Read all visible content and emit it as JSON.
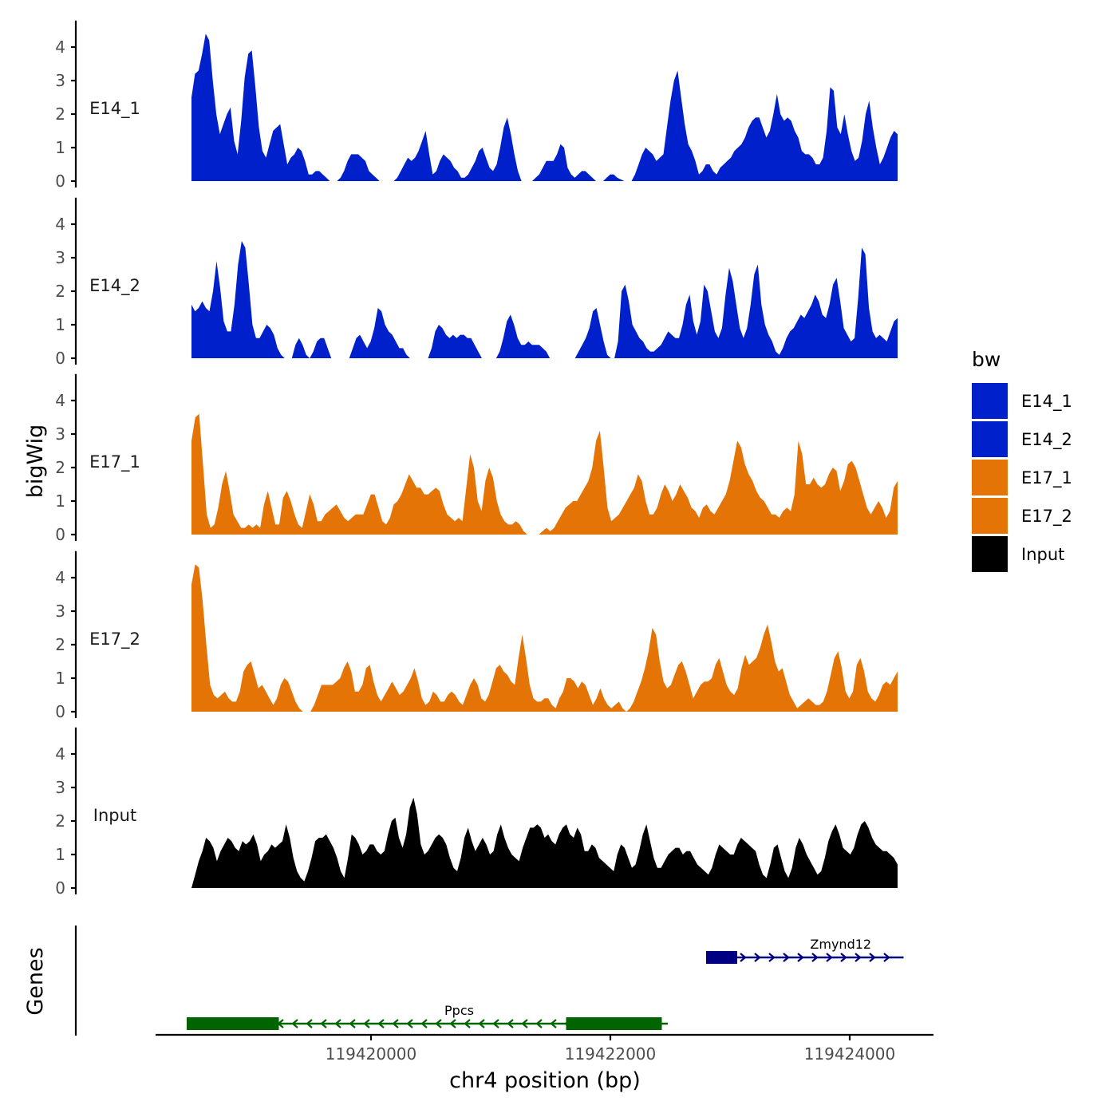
{
  "chart_data": {
    "type": "area",
    "title": "",
    "ylabel": "bigWig",
    "xlabel": "chr4 position (bp)",
    "genes_label": "Genes",
    "ylim": [
      0,
      4.6
    ],
    "y_ticks": [
      "0",
      "1",
      "2",
      "3",
      "4"
    ],
    "xlim": [
      119418200,
      119424700
    ],
    "x_ticks": [
      {
        "value": 119420000,
        "label": "119420000"
      },
      {
        "value": 119422000,
        "label": "119422000"
      },
      {
        "value": 119424000,
        "label": "119424000"
      }
    ],
    "legend": {
      "title": "bw",
      "items": [
        {
          "name": "E14_1",
          "color": "#0020CC"
        },
        {
          "name": "E14_2",
          "color": "#0020CC"
        },
        {
          "name": "E17_1",
          "color": "#E57407"
        },
        {
          "name": "E17_2",
          "color": "#E57407"
        },
        {
          "name": "Input",
          "color": "#000000"
        }
      ]
    },
    "track_x": {
      "start": 119418500,
      "end": 119424400
    },
    "series": [
      {
        "name": "E14_1",
        "color": "#0020CC",
        "values": [
          2.5,
          3.2,
          3.3,
          3.8,
          4.4,
          4.2,
          3.0,
          2.0,
          1.4,
          1.7,
          2.0,
          2.2,
          1.2,
          0.8,
          1.8,
          3.1,
          3.8,
          3.9,
          2.8,
          1.6,
          0.9,
          0.7,
          1.1,
          1.5,
          1.6,
          1.7,
          1.1,
          0.5,
          0.7,
          0.8,
          1.0,
          0.9,
          0.6,
          0.2,
          0.2,
          0.3,
          0.3,
          0.2,
          0.1,
          0,
          0,
          0,
          0.1,
          0.3,
          0.6,
          0.8,
          0.8,
          0.8,
          0.7,
          0.6,
          0.3,
          0.2,
          0.1,
          0,
          0,
          0,
          0,
          0,
          0.1,
          0.3,
          0.5,
          0.7,
          0.6,
          0.7,
          0.9,
          1.2,
          1.5,
          0.8,
          0.2,
          0.3,
          0.6,
          0.8,
          0.7,
          0.6,
          0.4,
          0.3,
          0.1,
          0.1,
          0.2,
          0.4,
          0.6,
          0.9,
          1.0,
          0.7,
          0.4,
          0.3,
          0.5,
          1.0,
          1.6,
          1.9,
          1.4,
          0.8,
          0.3,
          0,
          0,
          0,
          0,
          0.1,
          0.2,
          0.4,
          0.6,
          0.6,
          0.6,
          0.8,
          1.1,
          1.0,
          0.4,
          0.2,
          0.1,
          0.2,
          0.3,
          0.3,
          0.2,
          0.1,
          0,
          0,
          0,
          0.1,
          0.2,
          0.2,
          0.1,
          0.05,
          0,
          0,
          0,
          0.2,
          0.5,
          0.8,
          1.0,
          0.9,
          0.8,
          0.6,
          0.7,
          0.8,
          1.6,
          2.4,
          3.0,
          3.3,
          2.5,
          1.7,
          1.1,
          0.9,
          0.6,
          0.2,
          0.3,
          0.5,
          0.5,
          0.3,
          0.2,
          0.4,
          0.5,
          0.6,
          0.7,
          0.9,
          1.0,
          1.1,
          1.3,
          1.6,
          1.8,
          1.9,
          1.9,
          1.6,
          1.3,
          1.5,
          2.0,
          2.6,
          2.0,
          1.8,
          1.9,
          1.8,
          1.5,
          1.3,
          0.9,
          0.8,
          0.8,
          0.7,
          0.5,
          0.5,
          0.7,
          1.5,
          2.8,
          2.7,
          1.6,
          1.4,
          2.0,
          1.4,
          0.9,
          0.6,
          0.7,
          1.2,
          2.0,
          2.4,
          1.6,
          1.0,
          0.5,
          0.7,
          1.0,
          1.3,
          1.5,
          1.4
        ]
      },
      {
        "name": "E14_2",
        "color": "#0020CC",
        "values": [
          1.6,
          1.4,
          1.5,
          1.7,
          1.5,
          1.4,
          2.0,
          2.9,
          2.1,
          1.1,
          0.8,
          0.8,
          1.6,
          2.8,
          3.5,
          3.3,
          2.2,
          1.0,
          0.6,
          0.6,
          0.8,
          1.0,
          0.9,
          0.7,
          0.3,
          0.1,
          0,
          0,
          0,
          0.4,
          0.6,
          0.4,
          0.1,
          0,
          0.2,
          0.5,
          0.6,
          0.6,
          0.3,
          0,
          0,
          0,
          0,
          0,
          0,
          0.3,
          0.6,
          0.7,
          0.5,
          0.3,
          0.5,
          0.9,
          1.5,
          1.4,
          1.0,
          0.8,
          0.7,
          0.5,
          0.3,
          0.3,
          0.1,
          0,
          0,
          0,
          0,
          0,
          0,
          0.3,
          0.8,
          1.0,
          0.9,
          0.7,
          0.6,
          0.7,
          0.6,
          0.7,
          0.7,
          0.6,
          0.6,
          0.4,
          0.2,
          0,
          0,
          0,
          0,
          0,
          0.2,
          0.6,
          1.1,
          1.3,
          1.0,
          0.6,
          0.4,
          0.4,
          0.5,
          0.4,
          0.4,
          0.4,
          0.3,
          0.2,
          0,
          0,
          0,
          0,
          0,
          0,
          0,
          0,
          0.2,
          0.4,
          0.6,
          0.9,
          1.4,
          1.5,
          1.0,
          0.5,
          0.1,
          0,
          0,
          0.5,
          2.0,
          2.2,
          1.7,
          1.0,
          0.8,
          0.6,
          0.5,
          0.3,
          0.2,
          0.2,
          0.3,
          0.4,
          0.6,
          0.8,
          0.7,
          0.6,
          0.6,
          1.0,
          1.6,
          1.9,
          1.1,
          0.7,
          1.1,
          2.2,
          2.0,
          1.4,
          0.8,
          0.6,
          0.9,
          1.9,
          2.7,
          2.3,
          1.6,
          0.9,
          0.6,
          0.9,
          1.6,
          2.5,
          2.8,
          1.6,
          1.0,
          0.7,
          0.5,
          0.2,
          0.1,
          0.3,
          0.6,
          0.8,
          0.9,
          1.1,
          1.3,
          1.2,
          1.4,
          1.6,
          1.9,
          1.7,
          1.3,
          1.2,
          1.6,
          2.2,
          2.4,
          1.7,
          0.9,
          0.7,
          0.5,
          0.6,
          1.8,
          3.3,
          3.1,
          1.5,
          0.8,
          0.6,
          0.7,
          0.6,
          0.5,
          0.8,
          1.1,
          1.2
        ]
      },
      {
        "name": "E17_1",
        "color": "#E57407",
        "values": [
          2.8,
          3.5,
          3.6,
          2.1,
          0.6,
          0.2,
          0.3,
          0.8,
          1.5,
          1.9,
          1.3,
          0.6,
          0.4,
          0.2,
          0.2,
          0.3,
          0.2,
          0.3,
          0.2,
          0.9,
          1.3,
          0.8,
          0.3,
          0.3,
          1.1,
          1.3,
          1.0,
          0.6,
          0.3,
          0.2,
          0.7,
          1.2,
          0.9,
          0.4,
          0.4,
          0.6,
          0.7,
          0.8,
          0.9,
          0.7,
          0.5,
          0.4,
          0.5,
          0.6,
          0.6,
          0.6,
          0.9,
          1.2,
          1.2,
          0.8,
          0.4,
          0.3,
          0.5,
          0.9,
          1.0,
          1.2,
          1.5,
          1.8,
          1.6,
          1.4,
          1.4,
          1.2,
          1.2,
          1.3,
          1.4,
          1.3,
          0.9,
          0.6,
          0.5,
          0.4,
          0.5,
          0.4,
          1.4,
          2.4,
          2.0,
          1.0,
          0.7,
          1.6,
          2.0,
          1.7,
          1.0,
          0.6,
          0.4,
          0.3,
          0.3,
          0.4,
          0.3,
          0.1,
          0,
          0,
          0,
          0,
          0.1,
          0.2,
          0.1,
          0.2,
          0.4,
          0.6,
          0.8,
          0.9,
          1.0,
          1.0,
          1.2,
          1.4,
          1.6,
          2.0,
          2.8,
          3.1,
          2.0,
          0.8,
          0.4,
          0.5,
          0.6,
          0.8,
          1.0,
          1.2,
          1.4,
          1.8,
          1.6,
          1.0,
          0.6,
          0.6,
          0.8,
          1.2,
          1.5,
          1.3,
          1.0,
          1.2,
          1.5,
          1.3,
          1.1,
          0.8,
          0.7,
          0.5,
          0.8,
          0.9,
          0.7,
          0.6,
          0.8,
          1.0,
          1.2,
          1.6,
          2.2,
          2.8,
          2.6,
          2.1,
          1.8,
          1.6,
          1.3,
          1.1,
          1.0,
          0.8,
          0.6,
          0.6,
          0.5,
          0.7,
          0.8,
          0.7,
          1.2,
          2.8,
          2.4,
          1.5,
          1.5,
          1.7,
          1.5,
          1.4,
          1.5,
          1.8,
          2.0,
          1.9,
          1.3,
          1.6,
          2.1,
          2.2,
          2.0,
          1.6,
          1.2,
          0.8,
          0.6,
          0.8,
          1.0,
          0.8,
          0.5,
          0.7,
          1.4,
          1.6
        ]
      },
      {
        "name": "E17_2",
        "color": "#E57407",
        "values": [
          3.8,
          4.4,
          4.3,
          3.3,
          2.0,
          0.8,
          0.5,
          0.4,
          0.5,
          0.6,
          0.4,
          0.3,
          0.3,
          0.6,
          1.2,
          1.4,
          1.5,
          1.1,
          0.7,
          0.8,
          0.6,
          0.4,
          0.2,
          0.4,
          0.8,
          1.0,
          0.9,
          0.6,
          0.3,
          0.1,
          0,
          0,
          0,
          0.2,
          0.5,
          0.8,
          0.8,
          0.8,
          0.8,
          0.9,
          1.0,
          1.3,
          1.5,
          1.2,
          0.6,
          0.6,
          0.8,
          1.3,
          1.4,
          0.9,
          0.5,
          0.3,
          0.5,
          0.7,
          0.9,
          0.7,
          0.5,
          0.6,
          0.8,
          1.0,
          1.3,
          0.9,
          0.4,
          0.2,
          0.3,
          0.6,
          0.5,
          0.3,
          0.3,
          0.5,
          0.6,
          0.5,
          0.3,
          0.2,
          0.5,
          0.8,
          1.0,
          0.8,
          0.4,
          0.3,
          0.5,
          0.9,
          1.3,
          1.4,
          1.2,
          1.1,
          0.9,
          0.8,
          1.6,
          2.3,
          1.6,
          0.8,
          0.4,
          0.3,
          0.3,
          0.4,
          0.4,
          0.2,
          0.1,
          0.4,
          0.6,
          1.0,
          1.0,
          0.9,
          0.7,
          0.9,
          0.8,
          0.5,
          0.2,
          0.4,
          0.7,
          0.4,
          0.2,
          0.1,
          0.2,
          0.3,
          0.1,
          0,
          0.1,
          0.3,
          0.6,
          0.9,
          1.3,
          1.8,
          2.5,
          2.3,
          1.5,
          0.9,
          0.7,
          0.8,
          1.1,
          1.4,
          1.5,
          1.2,
          0.8,
          0.4,
          0.6,
          0.8,
          0.9,
          0.9,
          1.0,
          1.4,
          1.6,
          1.2,
          0.8,
          0.6,
          0.5,
          0.7,
          1.3,
          1.7,
          1.4,
          1.5,
          1.6,
          1.9,
          2.3,
          2.6,
          2.1,
          1.5,
          1.2,
          1.3,
          0.9,
          0.5,
          0.3,
          0.1,
          0.2,
          0.3,
          0.4,
          0.3,
          0.2,
          0.2,
          0.3,
          0.6,
          1.1,
          1.6,
          1.8,
          1.3,
          0.6,
          0.4,
          0.6,
          1.4,
          1.6,
          1.2,
          0.6,
          0.4,
          0.3,
          0.5,
          0.8,
          0.9,
          0.8,
          1.0,
          1.2
        ]
      },
      {
        "name": "Input",
        "color": "#000000",
        "values": [
          0,
          0.4,
          0.8,
          1.1,
          1.5,
          1.4,
          1.2,
          0.8,
          1.1,
          1.3,
          1.5,
          1.4,
          1.2,
          1.1,
          1.4,
          1.3,
          1.4,
          1.6,
          1.3,
          0.8,
          1.0,
          1.1,
          1.3,
          1.2,
          1.3,
          1.4,
          1.9,
          1.5,
          0.9,
          0.5,
          0.3,
          0.2,
          0.5,
          0.9,
          1.4,
          1.5,
          1.5,
          1.6,
          1.4,
          1.2,
          0.9,
          0.5,
          0.3,
          0.9,
          1.6,
          1.5,
          1.3,
          1.0,
          1.1,
          1.3,
          1.3,
          1.1,
          1.0,
          1.1,
          1.6,
          2.0,
          2.1,
          1.5,
          1.2,
          1.6,
          2.4,
          2.7,
          2.2,
          1.3,
          1.0,
          1.1,
          1.3,
          1.5,
          1.6,
          1.5,
          1.3,
          0.9,
          0.6,
          0.5,
          0.9,
          1.5,
          1.8,
          1.4,
          1.1,
          1.3,
          1.5,
          1.3,
          1.0,
          1.1,
          1.6,
          1.9,
          1.5,
          1.2,
          1.0,
          0.9,
          0.8,
          1.2,
          1.5,
          1.8,
          1.8,
          1.9,
          1.8,
          1.5,
          1.6,
          1.4,
          1.3,
          1.6,
          1.8,
          1.9,
          1.6,
          1.5,
          1.8,
          1.6,
          1.1,
          1.1,
          1.3,
          1.2,
          0.9,
          0.8,
          0.7,
          0.6,
          0.5,
          1.0,
          1.3,
          1.2,
          0.9,
          0.6,
          0.7,
          1.1,
          1.6,
          1.9,
          1.4,
          0.9,
          0.6,
          0.6,
          0.8,
          1.0,
          1.1,
          1.2,
          1.2,
          1.0,
          1.1,
          1.1,
          0.9,
          0.7,
          0.6,
          0.5,
          0.4,
          0.6,
          1.0,
          1.3,
          1.2,
          1.1,
          1.0,
          1.0,
          1.3,
          1.5,
          1.4,
          1.3,
          1.2,
          1.1,
          0.7,
          0.4,
          0.3,
          0.7,
          1.2,
          1.3,
          0.9,
          0.5,
          0.3,
          0.6,
          1.2,
          1.5,
          1.3,
          1.0,
          0.8,
          0.6,
          0.4,
          0.5,
          0.9,
          1.4,
          1.7,
          1.9,
          1.6,
          1.2,
          1.1,
          1.0,
          1.2,
          1.6,
          1.9,
          2.0,
          1.8,
          1.5,
          1.3,
          1.2,
          1.1,
          1.1,
          1.0,
          0.9,
          0.7
        ]
      }
    ],
    "genes": [
      {
        "name": "Zmynd12",
        "strand": "+",
        "color": "#000080",
        "start": 119422800,
        "end": 119424450,
        "exons": [
          [
            119422800,
            119422900
          ],
          [
            119422900,
            119423060
          ]
        ],
        "row": "top"
      },
      {
        "name": "Ppcs",
        "strand": "-",
        "color": "#006400",
        "start": 119418460,
        "end": 119422480,
        "exons": [
          [
            119418460,
            119419230
          ],
          [
            119421630,
            119422430
          ]
        ],
        "row": "bottom"
      }
    ]
  }
}
